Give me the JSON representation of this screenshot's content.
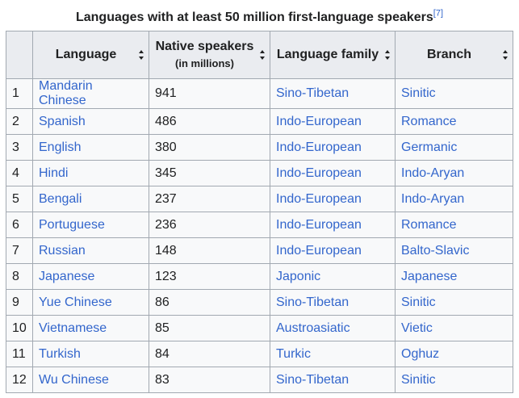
{
  "caption": {
    "title": "Languages with at least 50 million first-language speakers",
    "ref": "[7]"
  },
  "headers": {
    "language": "Language",
    "native": "Native speakers",
    "native_unit": "(in millions)",
    "family": "Language family",
    "branch": "Branch"
  },
  "rows": [
    {
      "rank": "1",
      "language": "Mandarin Chinese",
      "speakers": "941",
      "family": "Sino-Tibetan",
      "branch": "Sinitic"
    },
    {
      "rank": "2",
      "language": "Spanish",
      "speakers": "486",
      "family": "Indo-European",
      "branch": "Romance"
    },
    {
      "rank": "3",
      "language": "English",
      "speakers": "380",
      "family": "Indo-European",
      "branch": "Germanic"
    },
    {
      "rank": "4",
      "language": "Hindi",
      "speakers": "345",
      "family": "Indo-European",
      "branch": "Indo-Aryan"
    },
    {
      "rank": "5",
      "language": "Bengali",
      "speakers": "237",
      "family": "Indo-European",
      "branch": "Indo-Aryan"
    },
    {
      "rank": "6",
      "language": "Portuguese",
      "speakers": "236",
      "family": "Indo-European",
      "branch": "Romance"
    },
    {
      "rank": "7",
      "language": "Russian",
      "speakers": "148",
      "family": "Indo-European",
      "branch": "Balto-Slavic"
    },
    {
      "rank": "8",
      "language": "Japanese",
      "speakers": "123",
      "family": "Japonic",
      "branch": "Japanese"
    },
    {
      "rank": "9",
      "language": "Yue Chinese",
      "speakers": "86",
      "family": "Sino-Tibetan",
      "branch": "Sinitic"
    },
    {
      "rank": "10",
      "language": "Vietnamese",
      "speakers": "85",
      "family": "Austroasiatic",
      "branch": "Vietic"
    },
    {
      "rank": "11",
      "language": "Turkish",
      "speakers": "84",
      "family": "Turkic",
      "branch": "Oghuz"
    },
    {
      "rank": "12",
      "language": "Wu Chinese",
      "speakers": "83",
      "family": "Sino-Tibetan",
      "branch": "Sinitic"
    }
  ],
  "colors": {
    "link": "#3366cc",
    "header_bg": "#eaecf0",
    "cell_bg": "#f8f9fa",
    "border": "#a2a9b1"
  }
}
